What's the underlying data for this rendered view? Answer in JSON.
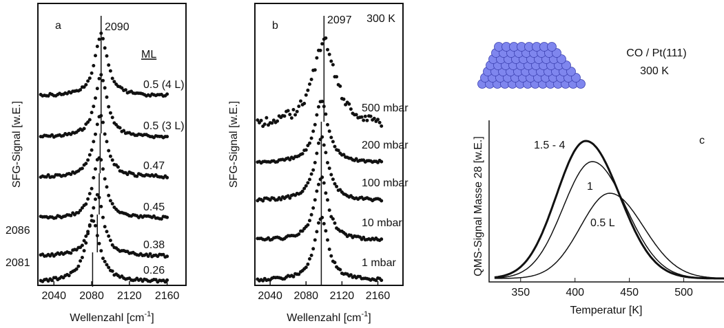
{
  "chart_data": [
    {
      "type": "spectra",
      "title": "a",
      "xlabel": "Wellenzahl [cm",
      "xlabel_sup": "-1",
      "xlabel_end": "]",
      "ylabel": "SFG-Signal [w.E.]",
      "legend_title": "ML",
      "xlim": [
        2023,
        2180
      ],
      "xticks": [
        2040,
        2080,
        2120,
        2160
      ],
      "annotations": [
        "2090",
        "2086",
        "2081"
      ],
      "series": [
        {
          "name": "0.5 (4 L)",
          "peak": 2090,
          "width": 16
        },
        {
          "name": "0.5 (3 L)",
          "peak": 2090,
          "width": 16
        },
        {
          "name": "0.47",
          "peak": 2089,
          "width": 16
        },
        {
          "name": "0.45",
          "peak": 2088,
          "width": 16
        },
        {
          "name": "0.38",
          "peak": 2086,
          "width": 16
        },
        {
          "name": "0.26",
          "peak": 2081,
          "width": 18
        }
      ]
    },
    {
      "type": "spectra",
      "title": "b",
      "subtitle": "300 K",
      "xlabel": "Wellenzahl [cm",
      "xlabel_sup": "-1",
      "xlabel_end": "]",
      "ylabel": "SFG-Signal [w.E.]",
      "xlim": [
        2023,
        2188
      ],
      "xticks": [
        2040,
        2080,
        2120,
        2160
      ],
      "annotations": [
        "2097"
      ],
      "series": [
        {
          "name": "500 mbar",
          "peak": 2100,
          "width": 30
        },
        {
          "name": "200 mbar",
          "peak": 2097,
          "width": 18
        },
        {
          "name": "100 mbar",
          "peak": 2097,
          "width": 18
        },
        {
          "name": "10 mbar",
          "peak": 2097,
          "width": 18
        },
        {
          "name": "1 mbar",
          "peak": 2097,
          "width": 18
        }
      ]
    },
    {
      "type": "tpd",
      "title": "c",
      "heading": "CO / Pt(111)",
      "subheading": "300 K",
      "xlabel": "Temperatur [K]",
      "ylabel": "QMS-Signal Masse 28 [w.E.]",
      "xlim": [
        321,
        537
      ],
      "xticks": [
        350,
        400,
        450,
        500
      ],
      "series": [
        {
          "name": "1.5 - 4",
          "peak": 410,
          "height": 1.0
        },
        {
          "name": "1",
          "peak": 416,
          "height": 0.85
        },
        {
          "name": "0.5 L",
          "peak": 432,
          "height": 0.62
        }
      ]
    }
  ]
}
